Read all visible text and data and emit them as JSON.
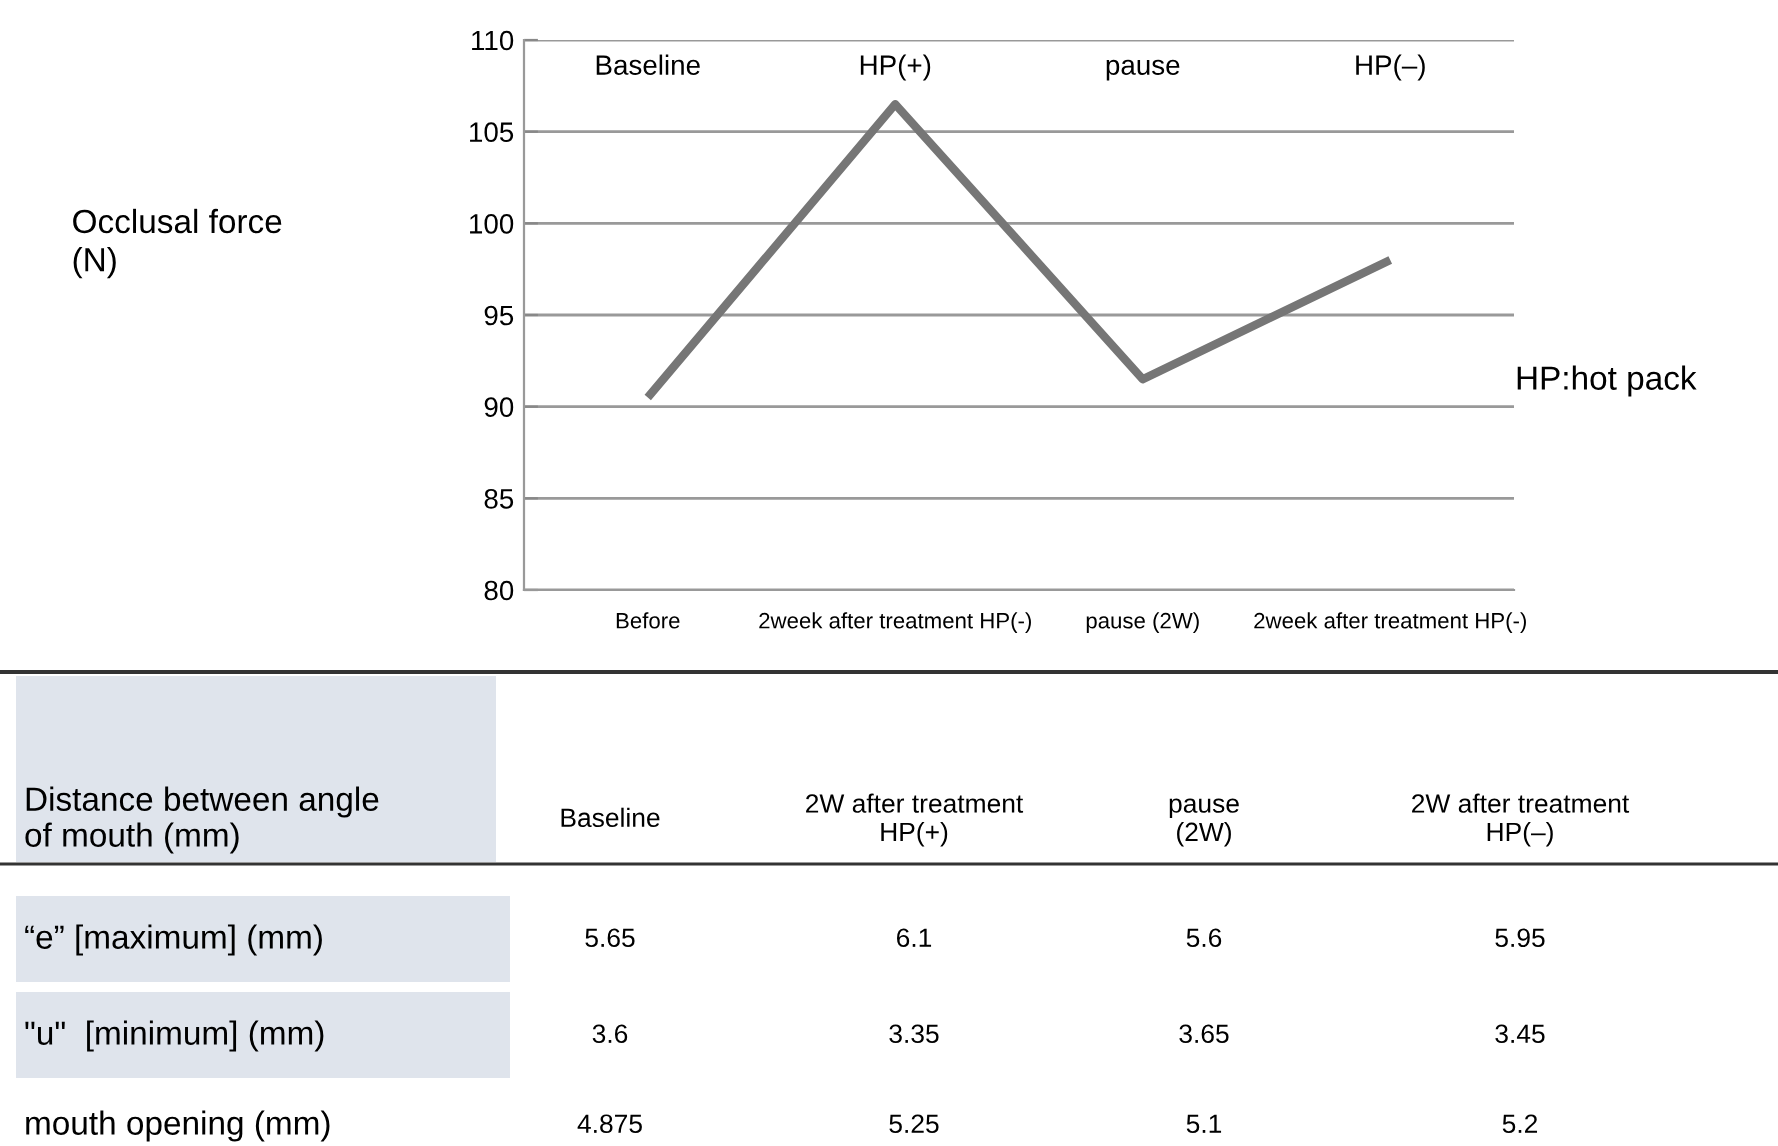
{
  "chart_data": [
    {
      "type": "line",
      "ylabel": "Occlusal force\n(N)",
      "categories": [
        "Before",
        "2week after treatment HP(-)",
        "pause (2W)",
        "2week after treatment HP(-)"
      ],
      "series": [
        {
          "color": "#767676",
          "values": [
            90.5,
            106.5,
            91.5,
            98
          ]
        }
      ],
      "ylim": [
        80,
        110
      ],
      "yticks": [
        80,
        85,
        90,
        95,
        100,
        105,
        110
      ],
      "grid": "y",
      "marker": "none",
      "line_style": "solid",
      "legend": false,
      "annotations": [
        "Baseline",
        "HP(+)",
        "pause",
        "HP(–)",
        "HP:hot pack"
      ]
    },
    {
      "type": "heatmap",
      "ylabel": "Distance between angle\nof mouth (mm)",
      "data_labels": true,
      "categories": [
        "Baseline",
        "2W after treatment\nHP(+)",
        "pause\n(2W)",
        "2W after treatment\nHP(–)"
      ],
      "y_categories": [
        "“e” [maximum] (mm)",
        "\"u\"  [minimum] (mm)",
        "mouth opening (mm)"
      ],
      "cells": [
        [
          5.65,
          6.1,
          5.6,
          5.95
        ],
        [
          3.6,
          3.35,
          3.65,
          3.45
        ],
        [
          4.875,
          5.25,
          5.1,
          5.2
        ]
      ]
    }
  ]
}
